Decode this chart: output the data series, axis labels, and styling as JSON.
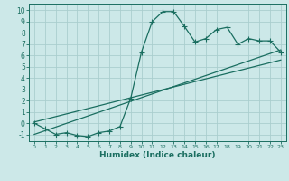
{
  "xlabel": "Humidex (Indice chaleur)",
  "bg_color": "#cce8e8",
  "grid_color": "#aacece",
  "line_color": "#1a6e60",
  "xlim": [
    -0.5,
    23.5
  ],
  "ylim": [
    -1.6,
    10.6
  ],
  "xticks": [
    0,
    1,
    2,
    3,
    4,
    5,
    6,
    7,
    8,
    9,
    10,
    11,
    12,
    13,
    14,
    15,
    16,
    17,
    18,
    19,
    20,
    21,
    22,
    23
  ],
  "yticks": [
    -1,
    0,
    1,
    2,
    3,
    4,
    5,
    6,
    7,
    8,
    9,
    10
  ],
  "curve_x": [
    0,
    1,
    2,
    3,
    4,
    5,
    6,
    7,
    8,
    9,
    10,
    11,
    12,
    13,
    14,
    15,
    16,
    17,
    18,
    19,
    20,
    21,
    22,
    23
  ],
  "curve_y": [
    0.0,
    -0.5,
    -1.0,
    -0.85,
    -1.1,
    -1.2,
    -0.85,
    -0.7,
    -0.3,
    2.2,
    6.3,
    9.0,
    9.9,
    9.9,
    8.6,
    7.2,
    7.5,
    8.3,
    8.5,
    7.0,
    7.5,
    7.3,
    7.3,
    6.3
  ],
  "line1_x": [
    0,
    23
  ],
  "line1_y": [
    -1.0,
    6.5
  ],
  "line2_x": [
    0,
    23
  ],
  "line2_y": [
    0.1,
    5.6
  ],
  "marker": "+",
  "markersize": 4,
  "linewidth": 0.9
}
